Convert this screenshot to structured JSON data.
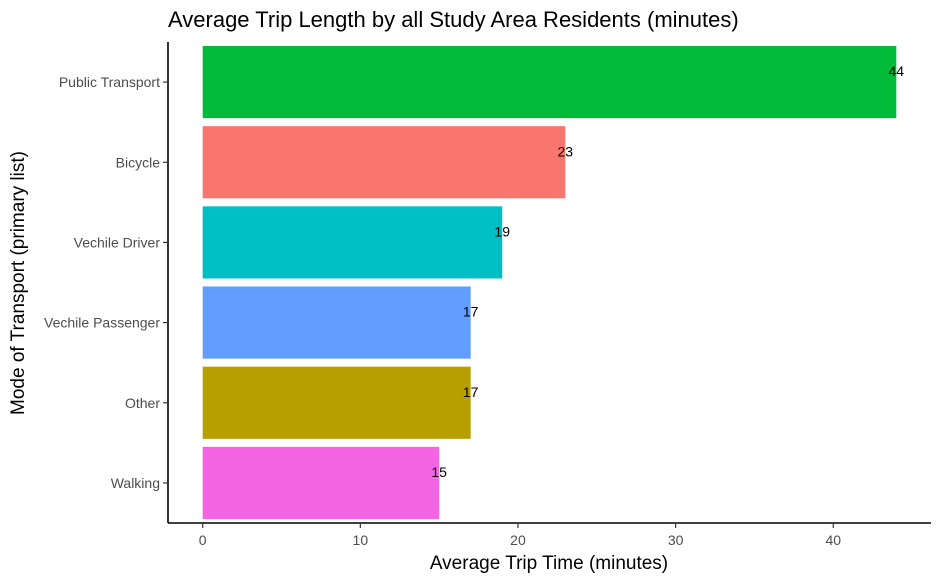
{
  "chart_data": {
    "type": "bar",
    "orientation": "horizontal",
    "title": "Average Trip Length by all Study Area Residents (minutes)",
    "xlabel": "Average Trip Time (minutes)",
    "ylabel": "Mode of Transport (primary list)",
    "categories": [
      "Public Transport",
      "Bicycle",
      "Vechile Driver",
      "Vechile Passenger",
      "Other",
      "Walking"
    ],
    "values": [
      44,
      23,
      19,
      17,
      17,
      15
    ],
    "data_labels": [
      "44",
      "23",
      "19",
      "17",
      "17",
      "15"
    ],
    "colors": [
      "#00BA38",
      "#F8766D",
      "#00BFC4",
      "#619CFF",
      "#B79F00",
      "#F564E3"
    ],
    "xlim": [
      -2.2,
      46.2
    ],
    "xticks": [
      0,
      10,
      20,
      30,
      40
    ],
    "xtick_labels": [
      "0",
      "10",
      "20",
      "30",
      "40"
    ],
    "grid": false,
    "legend": "none"
  }
}
